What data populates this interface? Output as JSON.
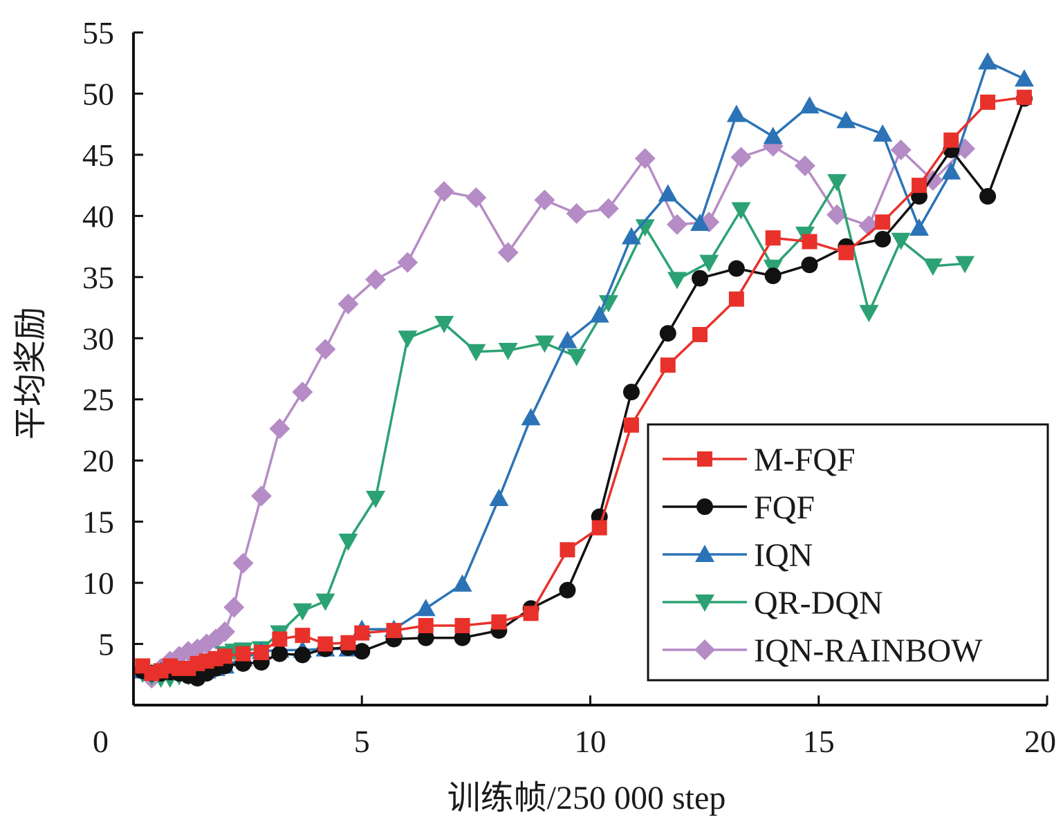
{
  "chart_data": {
    "type": "line",
    "title": "",
    "xlabel": "训练帧/250 000 step",
    "ylabel": "平均奖励",
    "xlim": [
      0,
      20
    ],
    "ylim": [
      0,
      55
    ],
    "xticks": [
      "0",
      "5",
      "10",
      "15",
      "20"
    ],
    "yticks": [
      "5",
      "10",
      "15",
      "20",
      "25",
      "30",
      "35",
      "40",
      "45",
      "50",
      "55"
    ],
    "grid": false,
    "legend_position": "bottom-right",
    "series": [
      {
        "name": "M-FQF",
        "color": "#e8312b",
        "marker": "square",
        "points": [
          [
            0.2,
            3.2
          ],
          [
            0.4,
            2.6
          ],
          [
            0.6,
            2.8
          ],
          [
            0.8,
            3.2
          ],
          [
            1.0,
            3.0
          ],
          [
            1.2,
            3.0
          ],
          [
            1.4,
            3.4
          ],
          [
            1.6,
            3.6
          ],
          [
            1.8,
            3.8
          ],
          [
            2.0,
            4.0
          ],
          [
            2.4,
            4.2
          ],
          [
            2.8,
            4.3
          ],
          [
            3.2,
            5.4
          ],
          [
            3.7,
            5.7
          ],
          [
            4.2,
            5.0
          ],
          [
            4.7,
            5.1
          ],
          [
            5.0,
            5.9
          ],
          [
            5.7,
            6.1
          ],
          [
            6.4,
            6.5
          ],
          [
            7.2,
            6.5
          ],
          [
            8.0,
            6.8
          ],
          [
            8.7,
            7.5
          ],
          [
            9.5,
            12.7
          ],
          [
            10.2,
            14.5
          ],
          [
            10.9,
            22.9
          ],
          [
            11.7,
            27.8
          ],
          [
            12.4,
            30.3
          ],
          [
            13.2,
            33.2
          ],
          [
            14.0,
            38.2
          ],
          [
            14.8,
            37.9
          ],
          [
            15.6,
            37.0
          ],
          [
            16.4,
            39.5
          ],
          [
            17.2,
            42.5
          ],
          [
            17.9,
            46.2
          ],
          [
            18.7,
            49.3
          ],
          [
            19.5,
            49.7
          ]
        ]
      },
      {
        "name": "FQF",
        "color": "#111111",
        "marker": "circle",
        "points": [
          [
            0.2,
            2.8
          ],
          [
            0.4,
            2.6
          ],
          [
            0.6,
            2.6
          ],
          [
            0.8,
            2.7
          ],
          [
            1.0,
            2.6
          ],
          [
            1.2,
            2.4
          ],
          [
            1.4,
            2.2
          ],
          [
            1.6,
            2.6
          ],
          [
            1.8,
            3.0
          ],
          [
            2.0,
            3.2
          ],
          [
            2.4,
            3.4
          ],
          [
            2.8,
            3.5
          ],
          [
            3.2,
            4.2
          ],
          [
            3.7,
            4.1
          ],
          [
            4.2,
            4.6
          ],
          [
            4.7,
            4.7
          ],
          [
            5.0,
            4.4
          ],
          [
            5.7,
            5.4
          ],
          [
            6.4,
            5.5
          ],
          [
            7.2,
            5.5
          ],
          [
            8.0,
            6.1
          ],
          [
            8.7,
            7.9
          ],
          [
            9.5,
            9.4
          ],
          [
            10.2,
            15.4
          ],
          [
            10.9,
            25.6
          ],
          [
            11.7,
            30.4
          ],
          [
            12.4,
            34.9
          ],
          [
            13.2,
            35.7
          ],
          [
            14.0,
            35.1
          ],
          [
            14.8,
            36.0
          ],
          [
            15.6,
            37.5
          ],
          [
            16.4,
            38.1
          ],
          [
            17.2,
            41.6
          ],
          [
            17.9,
            45.4
          ],
          [
            18.7,
            41.6
          ],
          [
            19.5,
            49.6
          ]
        ]
      },
      {
        "name": "IQN",
        "color": "#2b73b6",
        "marker": "triangle-up",
        "points": [
          [
            0.2,
            2.8
          ],
          [
            0.4,
            2.6
          ],
          [
            0.6,
            2.8
          ],
          [
            0.8,
            3.0
          ],
          [
            1.0,
            2.8
          ],
          [
            1.2,
            2.6
          ],
          [
            1.4,
            2.6
          ],
          [
            1.6,
            2.8
          ],
          [
            1.8,
            3.0
          ],
          [
            2.0,
            3.2
          ],
          [
            2.4,
            3.8
          ],
          [
            2.8,
            4.4
          ],
          [
            3.2,
            4.5
          ],
          [
            3.7,
            4.5
          ],
          [
            4.2,
            4.6
          ],
          [
            4.7,
            4.6
          ],
          [
            5.0,
            6.2
          ],
          [
            5.7,
            6.2
          ],
          [
            6.4,
            7.9
          ],
          [
            7.2,
            9.9
          ],
          [
            8.0,
            16.9
          ],
          [
            8.7,
            23.5
          ],
          [
            9.5,
            29.8
          ],
          [
            10.2,
            31.9
          ],
          [
            10.9,
            38.3
          ],
          [
            11.7,
            41.8
          ],
          [
            12.4,
            39.4
          ],
          [
            13.2,
            48.3
          ],
          [
            14.0,
            46.5
          ],
          [
            14.8,
            49.0
          ],
          [
            15.6,
            47.8
          ],
          [
            16.4,
            46.7
          ],
          [
            17.2,
            39.0
          ],
          [
            17.9,
            43.6
          ],
          [
            18.7,
            52.6
          ],
          [
            19.5,
            51.2
          ]
        ]
      },
      {
        "name": "QR-DQN",
        "color": "#2ca274",
        "marker": "triangle-down",
        "points": [
          [
            0.2,
            2.6
          ],
          [
            0.4,
            2.4
          ],
          [
            0.6,
            2.2
          ],
          [
            0.8,
            2.2
          ],
          [
            1.0,
            2.4
          ],
          [
            1.2,
            2.4
          ],
          [
            1.4,
            3.0
          ],
          [
            1.6,
            3.2
          ],
          [
            1.8,
            3.6
          ],
          [
            2.0,
            4.2
          ],
          [
            2.2,
            4.4
          ],
          [
            2.4,
            4.5
          ],
          [
            2.8,
            4.6
          ],
          [
            3.2,
            5.9
          ],
          [
            3.7,
            7.7
          ],
          [
            4.2,
            8.5
          ],
          [
            4.7,
            13.4
          ],
          [
            5.3,
            16.9
          ],
          [
            6.0,
            30.0
          ],
          [
            6.8,
            31.2
          ],
          [
            7.5,
            28.9
          ],
          [
            8.2,
            29.0
          ],
          [
            9.0,
            29.6
          ],
          [
            9.7,
            28.5
          ],
          [
            10.4,
            32.9
          ],
          [
            11.2,
            39.1
          ],
          [
            11.9,
            34.8
          ],
          [
            12.6,
            36.2
          ],
          [
            13.3,
            40.5
          ],
          [
            14.0,
            35.8
          ],
          [
            14.7,
            38.5
          ],
          [
            15.4,
            42.8
          ],
          [
            16.1,
            32.1
          ],
          [
            16.8,
            38.0
          ],
          [
            17.5,
            35.9
          ],
          [
            18.2,
            36.1
          ]
        ]
      },
      {
        "name": "IQN-RAINBOW",
        "color": "#b58cc5",
        "marker": "diamond",
        "points": [
          [
            0.2,
            2.8
          ],
          [
            0.4,
            2.2
          ],
          [
            0.6,
            3.0
          ],
          [
            0.8,
            3.6
          ],
          [
            1.0,
            4.0
          ],
          [
            1.2,
            4.4
          ],
          [
            1.4,
            4.6
          ],
          [
            1.6,
            5.0
          ],
          [
            1.8,
            5.4
          ],
          [
            2.0,
            6.0
          ],
          [
            2.2,
            8.0
          ],
          [
            2.4,
            11.6
          ],
          [
            2.8,
            17.1
          ],
          [
            3.2,
            22.6
          ],
          [
            3.7,
            25.6
          ],
          [
            4.2,
            29.1
          ],
          [
            4.7,
            32.8
          ],
          [
            5.3,
            34.8
          ],
          [
            6.0,
            36.2
          ],
          [
            6.8,
            42.0
          ],
          [
            7.5,
            41.5
          ],
          [
            8.2,
            37.0
          ],
          [
            9.0,
            41.3
          ],
          [
            9.7,
            40.2
          ],
          [
            10.4,
            40.6
          ],
          [
            11.2,
            44.7
          ],
          [
            11.9,
            39.3
          ],
          [
            12.6,
            39.5
          ],
          [
            13.3,
            44.8
          ],
          [
            14.0,
            45.7
          ],
          [
            14.7,
            44.1
          ],
          [
            15.4,
            40.1
          ],
          [
            16.1,
            39.2
          ],
          [
            16.8,
            45.4
          ],
          [
            17.5,
            42.9
          ],
          [
            18.2,
            45.5
          ]
        ]
      }
    ]
  }
}
